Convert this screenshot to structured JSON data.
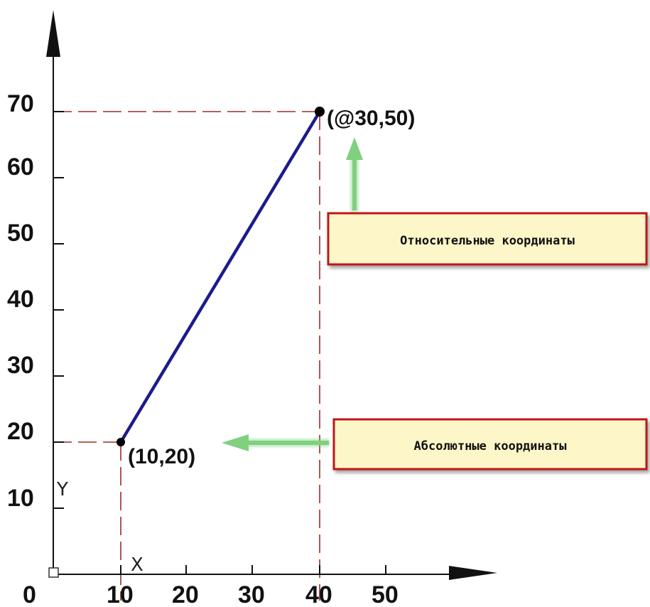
{
  "axes": {
    "y_tick_labels": [
      "10",
      "20",
      "30",
      "40",
      "50",
      "60",
      "70"
    ],
    "x_tick_labels": [
      "10",
      "20",
      "30",
      "40",
      "50"
    ],
    "origin_label": "0",
    "ucs_x_label": "X",
    "ucs_y_label": "Y"
  },
  "points": {
    "start": {
      "x": 10,
      "y": 20,
      "label": "(10,20)"
    },
    "end": {
      "x": 40,
      "y": 70,
      "label": "(@30,50)"
    }
  },
  "callouts": {
    "relative": {
      "text": "Относительные координаты"
    },
    "absolute": {
      "text": "Абсолютные координаты"
    }
  },
  "colors": {
    "line": "#1c1c8c",
    "guide_dash": "#9b2b2b",
    "axis": "#111111",
    "arrow": "#7fd07f",
    "callout_fill": "#fdf6c8",
    "callout_border": "#c01818"
  }
}
